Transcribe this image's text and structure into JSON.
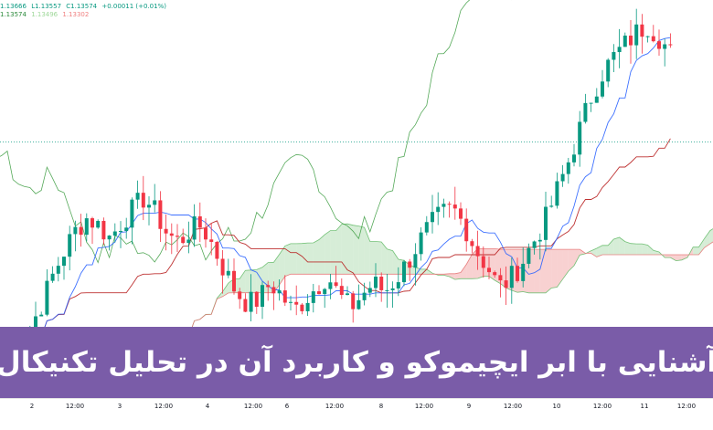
{
  "legend": {
    "ohlc": [
      "1.13666",
      "L1.13557",
      "C1.13574",
      "+0.00011 (+0.01%)"
    ],
    "ichimoku": [
      {
        "value": "1.13574",
        "color": "#2a8a3a"
      },
      {
        "value": "1.13496",
        "color": "#9fd89a"
      },
      {
        "value": "1.13302",
        "color": "#f08080"
      }
    ]
  },
  "banner": {
    "title": "آشنایی با ابر ایچیموکو و کاربرد آن در تحلیل تکنیکال"
  },
  "chart_data": {
    "type": "candlestick",
    "x_ticks": [
      "2",
      "12:00",
      "3",
      "12:00",
      "4",
      "12:00",
      "6",
      "12:00",
      "8",
      "12:00",
      "9",
      "12:00",
      "10",
      "12:00",
      "11",
      "12:00"
    ],
    "close_path": [
      1.1304,
      1.1306,
      1.1312,
      1.1318,
      1.1325,
      1.1331,
      1.1336,
      1.1339,
      1.1337,
      1.1334,
      1.1338,
      1.1341,
      1.1344,
      1.134,
      1.1335,
      1.1333,
      1.1336,
      1.1337,
      1.1332,
      1.1326,
      1.1321,
      1.1318,
      1.1319,
      1.1323,
      1.132,
      1.1316,
      1.1319,
      1.1322,
      1.1325,
      1.132,
      1.1317,
      1.132,
      1.1323,
      1.1321,
      1.1324,
      1.1328,
      1.1333,
      1.1337,
      1.134,
      1.1341,
      1.1337,
      1.1331,
      1.1327,
      1.1322,
      1.1324,
      1.1328,
      1.1333,
      1.1338,
      1.1345,
      1.1352,
      1.136,
      1.1368,
      1.1374,
      1.1378,
      1.1381,
      1.1384,
      1.1386,
      1.1383,
      1.1379
    ],
    "current_price": 1.13574,
    "ylim": [
      1.1295,
      1.1392
    ],
    "colors": {
      "up": "#089981",
      "down": "#f23645",
      "tenkan": "#2962ff",
      "kijun": "#b71c1c",
      "chikou": "#43a047",
      "cloud_bull": "#a5d6a7",
      "cloud_bear": "#ef9a9a",
      "price_line": "#089981"
    }
  }
}
